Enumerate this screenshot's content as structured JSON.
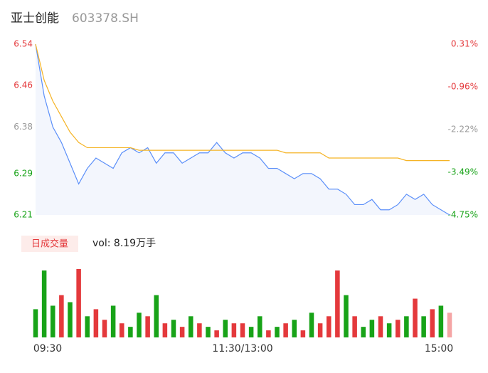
{
  "header": {
    "title": "亚士创能",
    "code": "603378.SH"
  },
  "chart_data": [
    {
      "type": "line",
      "xlim": [
        0,
        240
      ],
      "ylim": [
        6.21,
        6.54
      ],
      "yticks": [
        6.54,
        6.46,
        6.38,
        6.29,
        6.21
      ],
      "y2lim": [
        -4.75,
        0.31
      ],
      "y2ticks": [
        {
          "value": 0.31,
          "label": "0.31%"
        },
        {
          "value": -0.96,
          "label": "-0.96%"
        },
        {
          "value": -2.22,
          "label": "-2.22%"
        },
        {
          "value": -3.49,
          "label": "-3.49%"
        },
        {
          "value": -4.75,
          "label": "-4.75%"
        }
      ],
      "tick_colors": [
        "#e4393c",
        "#e4393c",
        "#999999",
        "#18a318",
        "#18a318"
      ],
      "x": [
        0,
        5,
        10,
        15,
        20,
        25,
        30,
        35,
        40,
        45,
        50,
        55,
        60,
        65,
        70,
        75,
        80,
        85,
        90,
        95,
        100,
        105,
        110,
        115,
        120,
        125,
        130,
        135,
        140,
        145,
        150,
        155,
        160,
        165,
        170,
        175,
        180,
        185,
        190,
        195,
        200,
        205,
        210,
        215,
        220,
        225,
        230,
        235,
        240
      ],
      "series": [
        {
          "color": "#5b8ff9",
          "area_color": "#f3f6fd",
          "values": [
            6.54,
            6.44,
            6.38,
            6.35,
            6.31,
            6.27,
            6.3,
            6.32,
            6.31,
            6.3,
            6.33,
            6.34,
            6.33,
            6.34,
            6.31,
            6.33,
            6.33,
            6.31,
            6.32,
            6.33,
            6.33,
            6.35,
            6.33,
            6.32,
            6.33,
            6.33,
            6.32,
            6.3,
            6.3,
            6.29,
            6.28,
            6.29,
            6.29,
            6.28,
            6.26,
            6.26,
            6.25,
            6.23,
            6.23,
            6.24,
            6.22,
            6.22,
            6.23,
            6.25,
            6.24,
            6.25,
            6.23,
            6.22,
            6.21
          ]
        },
        {
          "color": "#f5b324",
          "values": [
            6.54,
            6.47,
            6.43,
            6.4,
            6.37,
            6.35,
            6.34,
            6.34,
            6.34,
            6.34,
            6.34,
            6.34,
            6.335,
            6.335,
            6.335,
            6.335,
            6.335,
            6.335,
            6.335,
            6.335,
            6.335,
            6.335,
            6.335,
            6.335,
            6.335,
            6.335,
            6.335,
            6.335,
            6.335,
            6.33,
            6.33,
            6.33,
            6.33,
            6.33,
            6.32,
            6.32,
            6.32,
            6.32,
            6.32,
            6.32,
            6.32,
            6.32,
            6.32,
            6.315,
            6.315,
            6.315,
            6.315,
            6.315,
            6.315
          ]
        }
      ]
    },
    {
      "type": "bar",
      "title": "日成交量",
      "subtitle": "vol: 8.19万手",
      "xlim": [
        0,
        240
      ],
      "ylim": [
        0,
        100
      ],
      "xticks": [
        {
          "value": 0,
          "label": "09:30"
        },
        {
          "value": 120,
          "label": "11:30/13:00"
        },
        {
          "value": 240,
          "label": "15:00"
        }
      ],
      "x": [
        0,
        5,
        10,
        15,
        20,
        25,
        30,
        35,
        40,
        45,
        50,
        55,
        60,
        65,
        70,
        75,
        80,
        85,
        90,
        95,
        100,
        105,
        110,
        115,
        120,
        125,
        130,
        135,
        140,
        145,
        150,
        155,
        160,
        165,
        170,
        175,
        180,
        185,
        190,
        195,
        200,
        205,
        210,
        215,
        220,
        225,
        230,
        235,
        240
      ],
      "values": [
        40,
        95,
        45,
        60,
        50,
        97,
        30,
        40,
        25,
        45,
        20,
        15,
        35,
        30,
        60,
        20,
        25,
        15,
        30,
        20,
        15,
        10,
        25,
        20,
        20,
        15,
        30,
        10,
        15,
        20,
        25,
        10,
        35,
        20,
        30,
        95,
        60,
        30,
        15,
        25,
        30,
        20,
        25,
        30,
        55,
        30,
        40,
        45,
        35
      ],
      "colors": [
        "#18a318",
        "#18a318",
        "#18a318",
        "#e4393c",
        "#18a318",
        "#e4393c",
        "#18a318",
        "#e4393c",
        "#e4393c",
        "#18a318",
        "#e4393c",
        "#18a318",
        "#18a318",
        "#e4393c",
        "#18a318",
        "#e4393c",
        "#18a318",
        "#e4393c",
        "#18a318",
        "#e4393c",
        "#18a318",
        "#e4393c",
        "#18a318",
        "#e4393c",
        "#e4393c",
        "#18a318",
        "#18a318",
        "#e4393c",
        "#18a318",
        "#e4393c",
        "#18a318",
        "#e4393c",
        "#18a318",
        "#e4393c",
        "#e4393c",
        "#e4393c",
        "#18a318",
        "#e4393c",
        "#18a318",
        "#18a318",
        "#e4393c",
        "#18a318",
        "#e4393c",
        "#18a318",
        "#e4393c",
        "#18a318",
        "#e4393c",
        "#18a318",
        "#f5a5a5"
      ]
    }
  ]
}
